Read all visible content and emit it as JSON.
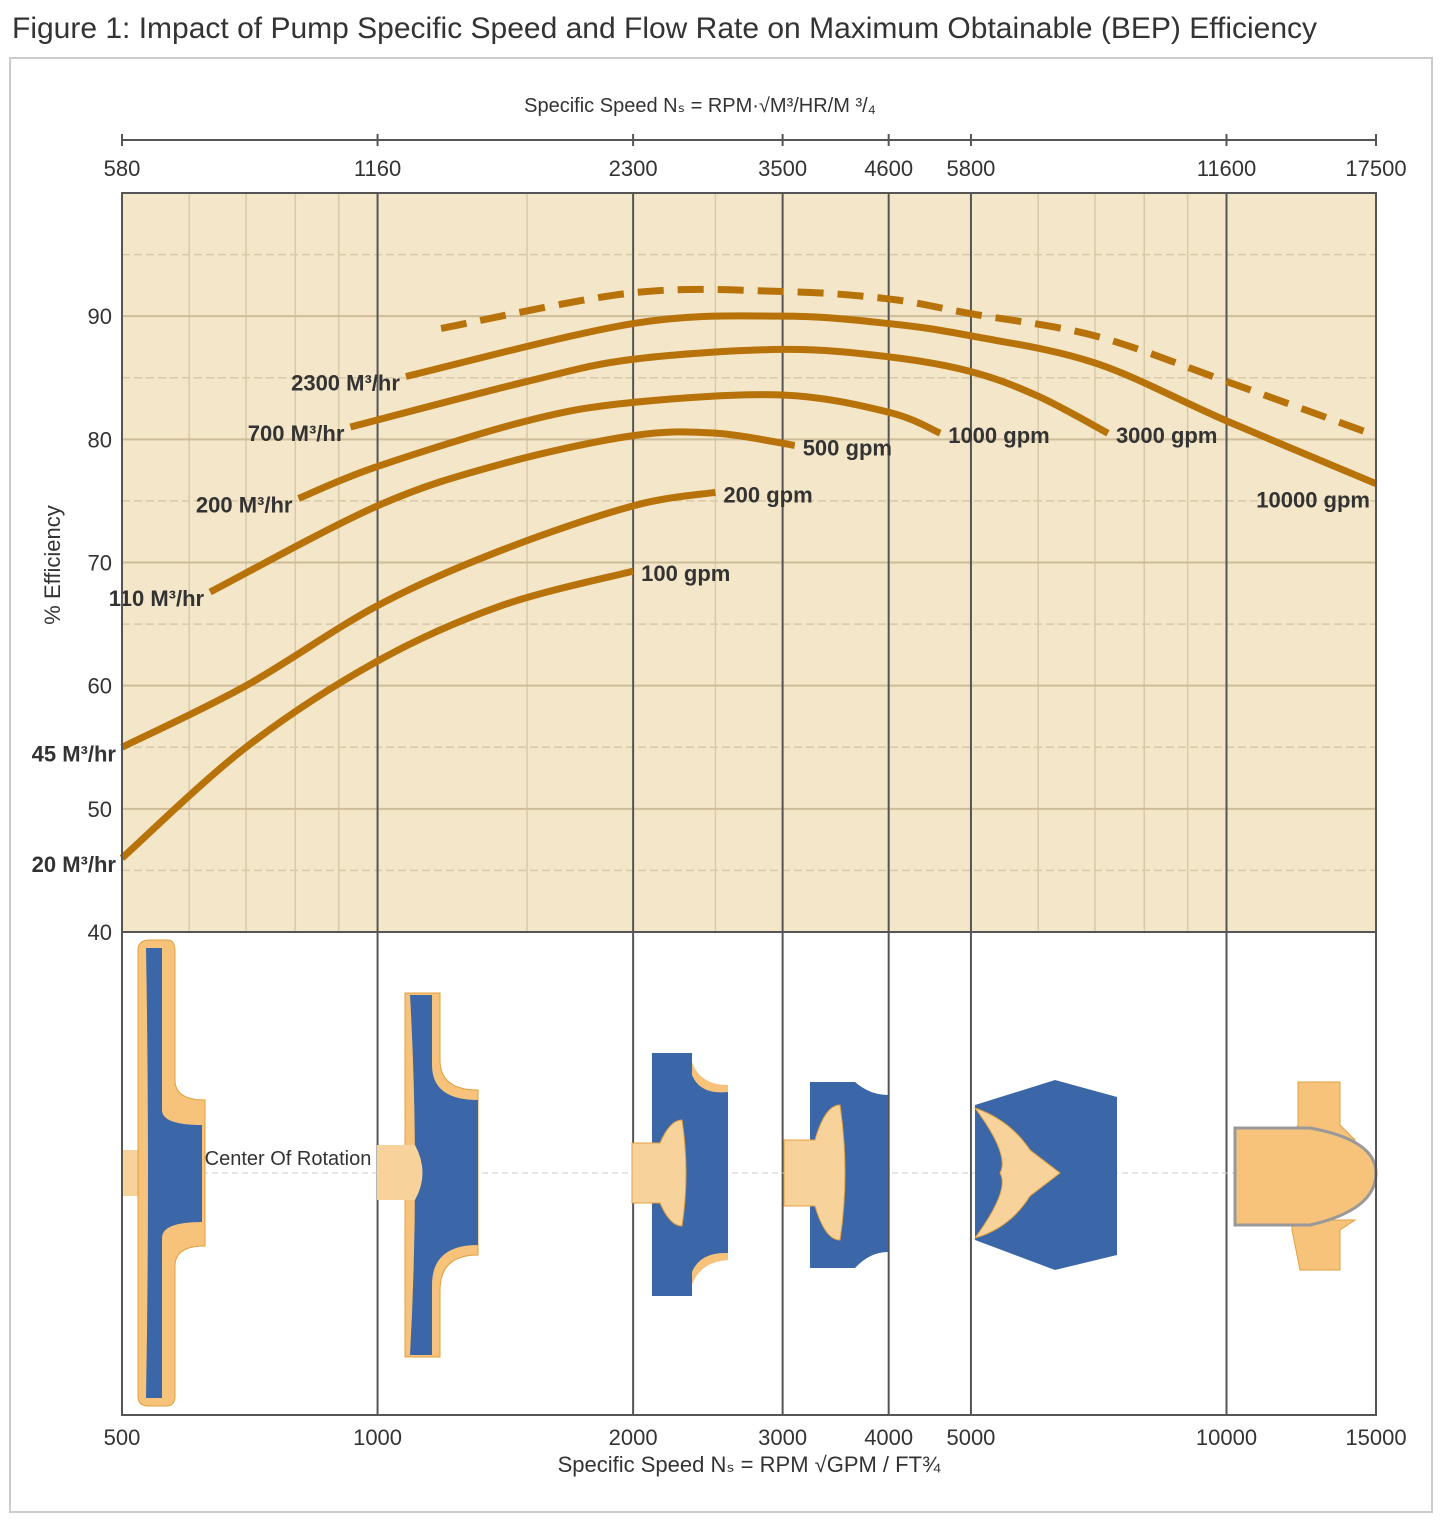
{
  "chart_data": {
    "type": "line",
    "title": "Figure 1: Impact of Pump Specific Speed and Flow Rate on Maximum Obtainable (BEP) Efficiency",
    "x_label": "Specific Speed Nₛ = RPM √GPM / FT¾",
    "x2_label": "Specific Speed Nₛ = RPM·√M³/HR/M ³/₄",
    "y_label": "% Efficiency",
    "annotation": "Center Of Rotation",
    "log_x": true,
    "xlim": [
      500,
      15000
    ],
    "ylim": [
      40,
      100
    ],
    "xticks": [
      500,
      1000,
      2000,
      3000,
      4000,
      5000,
      10000,
      15000
    ],
    "x2ticks": [
      {
        "value": 500,
        "label": "580"
      },
      {
        "value": 1000,
        "label": "1160"
      },
      {
        "value": 2000,
        "label": "2300"
      },
      {
        "value": 3000,
        "label": "3500"
      },
      {
        "value": 4000,
        "label": "4600"
      },
      {
        "value": 5000,
        "label": "5800"
      },
      {
        "value": 10000,
        "label": "11600"
      },
      {
        "value": 15000,
        "label": "17500"
      }
    ],
    "yticks": [
      40,
      50,
      60,
      70,
      80,
      90
    ],
    "x_minor_grid": [
      600,
      700,
      800,
      900,
      1500,
      2500,
      6000,
      7000,
      8000,
      9000
    ],
    "y_minor_grid": [
      45,
      55,
      65,
      75,
      85,
      95
    ],
    "grid": true,
    "series": [
      {
        "name": "20 M³/hr",
        "end_label": "100 gpm",
        "color": "#b8720a",
        "x": [
          500,
          700,
          1000,
          1400,
          2000
        ],
        "values": [
          46,
          55,
          62,
          66.5,
          69.3
        ]
      },
      {
        "name": "45 M³/hr",
        "end_label": "200 gpm",
        "color": "#b8720a",
        "x": [
          500,
          700,
          1000,
          1400,
          2000,
          2500
        ],
        "values": [
          55,
          60,
          66.5,
          71,
          74.6,
          75.7
        ]
      },
      {
        "name": "110 M³/hr",
        "end_label": "500 gpm",
        "color": "#b8720a",
        "x": [
          635,
          1000,
          1400,
          2000,
          2500,
          3100
        ],
        "values": [
          67.6,
          74.6,
          78,
          80.3,
          80.5,
          79.5
        ]
      },
      {
        "name": "200 M³/hr",
        "end_label": "1000 gpm",
        "color": "#b8720a",
        "x": [
          807,
          1000,
          1500,
          2000,
          3000,
          4000,
          4600
        ],
        "values": [
          75.2,
          77.8,
          81.5,
          83,
          83.6,
          82.2,
          80.5
        ]
      },
      {
        "name": "700 M³/hr",
        "end_label": "3000 gpm",
        "color": "#b8720a",
        "x": [
          929,
          1500,
          2000,
          3000,
          4000,
          5000,
          6000,
          7250
        ],
        "values": [
          81,
          84.7,
          86.5,
          87.3,
          86.7,
          85.5,
          83.5,
          80.5
        ]
      },
      {
        "name": "2300 M³/hr",
        "end_label": "10000 gpm",
        "color": "#b8720a",
        "x": [
          1080,
          2000,
          3000,
          4000,
          5000,
          7000,
          10000,
          15000
        ],
        "values": [
          85.1,
          89.4,
          90,
          89.4,
          88.4,
          86.2,
          81.5,
          76.4
        ]
      },
      {
        "dashed": true,
        "color": "#b8720a",
        "x": [
          1188,
          2000,
          3000,
          4000,
          5000,
          7000,
          10000,
          15000
        ],
        "values": [
          89,
          91.9,
          92,
          91.4,
          90.2,
          88.4,
          84.7,
          80.3
        ]
      }
    ]
  }
}
